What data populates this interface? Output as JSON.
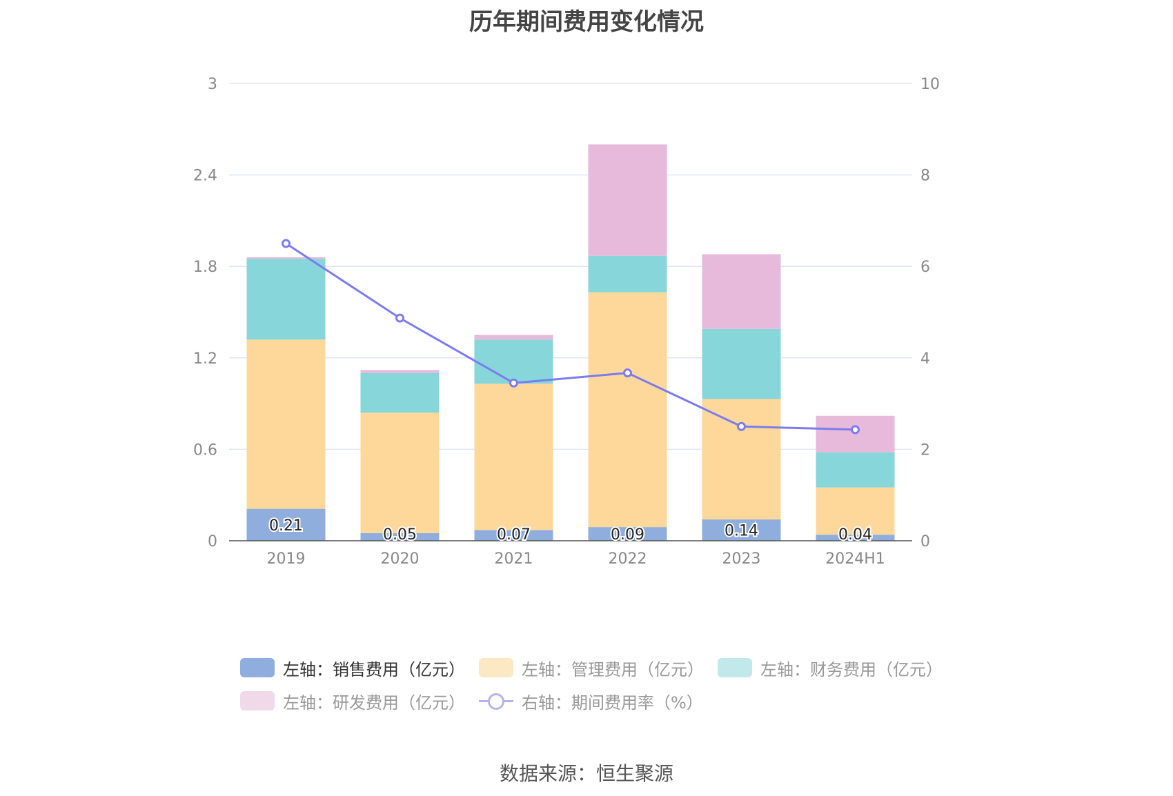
{
  "title": "历年期间费用变化情况",
  "source": "数据来源：恒生聚源",
  "colors": {
    "sales": "#8faedd",
    "admin": "#fed89b",
    "finance": "#87d6da",
    "rd": "#e7b9da",
    "rate": "#7b7bf0",
    "grid": "#e0e3f5",
    "axis": "#555555",
    "tick": "#888888"
  },
  "legend": [
    {
      "label": "左轴：销售费用（亿元）",
      "color": "#8faedd",
      "type": "box",
      "active": true
    },
    {
      "label": "左轴：管理费用（亿元）",
      "color": "#fde8c4",
      "type": "box",
      "active": false
    },
    {
      "label": "左轴：财务费用（亿元）",
      "color": "#c1e9eb",
      "type": "box",
      "active": false
    },
    {
      "label": "左轴：研发费用（亿元）",
      "color": "#f0daea",
      "type": "box",
      "active": false
    },
    {
      "label": "右轴：期间费用率（%）",
      "color": "#b4b3ec",
      "type": "line",
      "active": false
    }
  ],
  "chart_data": {
    "type": "bar",
    "stacked": true,
    "title": "历年期间费用变化情况",
    "categories": [
      "2019",
      "2020",
      "2021",
      "2022",
      "2023",
      "2024H1"
    ],
    "series": [
      {
        "name": "左轴：销售费用（亿元）",
        "axis": "left",
        "values": [
          0.21,
          0.05,
          0.07,
          0.09,
          0.14,
          0.04
        ],
        "labels": [
          "0.21",
          "0.05",
          "0.07",
          "0.09",
          "0.14",
          "0.04"
        ]
      },
      {
        "name": "左轴：管理费用（亿元）",
        "axis": "left",
        "values": [
          1.11,
          0.79,
          0.96,
          1.54,
          0.79,
          0.31
        ]
      },
      {
        "name": "左轴：财务费用（亿元）",
        "axis": "left",
        "values": [
          0.53,
          0.26,
          0.29,
          0.24,
          0.46,
          0.23
        ]
      },
      {
        "name": "左轴：研发费用（亿元）",
        "axis": "left",
        "values": [
          0.01,
          0.02,
          0.03,
          0.73,
          0.49,
          0.24
        ]
      },
      {
        "name": "右轴：期间费用率（%）",
        "axis": "right",
        "type": "line",
        "values": [
          6.5,
          4.87,
          3.45,
          3.67,
          2.5,
          2.43
        ]
      }
    ],
    "left_axis": {
      "min": 0,
      "max": 3,
      "ticks": [
        "0",
        "0.6",
        "1.2",
        "1.8",
        "2.4",
        "3"
      ]
    },
    "right_axis": {
      "min": 0,
      "max": 10,
      "ticks": [
        "0",
        "2",
        "4",
        "6",
        "8",
        "10"
      ]
    },
    "legend_position": "bottom"
  }
}
